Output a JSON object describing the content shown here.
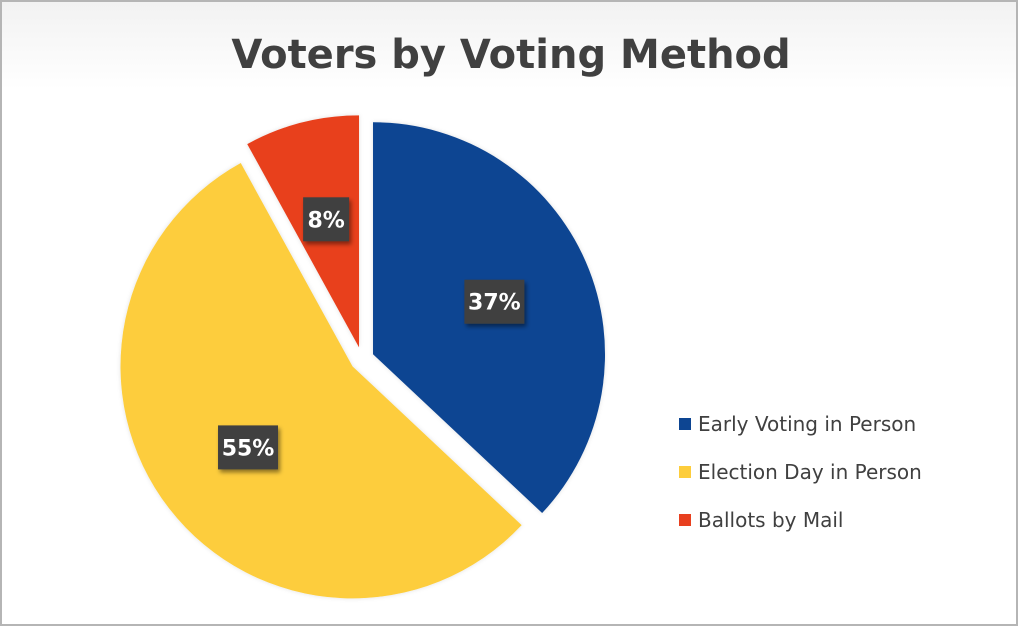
{
  "chart_data": {
    "type": "pie",
    "title": "Voters by Voting Method",
    "categories": [
      "Early Voting in Person",
      "Election Day in Person",
      "Ballots by Mail"
    ],
    "values": [
      37,
      55,
      8
    ],
    "value_labels": [
      "37%",
      "55%",
      "8%"
    ],
    "exploded": true,
    "colors": [
      "#0d4592",
      "#fdcd3c",
      "#e8401f"
    ],
    "legend_position": "right"
  }
}
